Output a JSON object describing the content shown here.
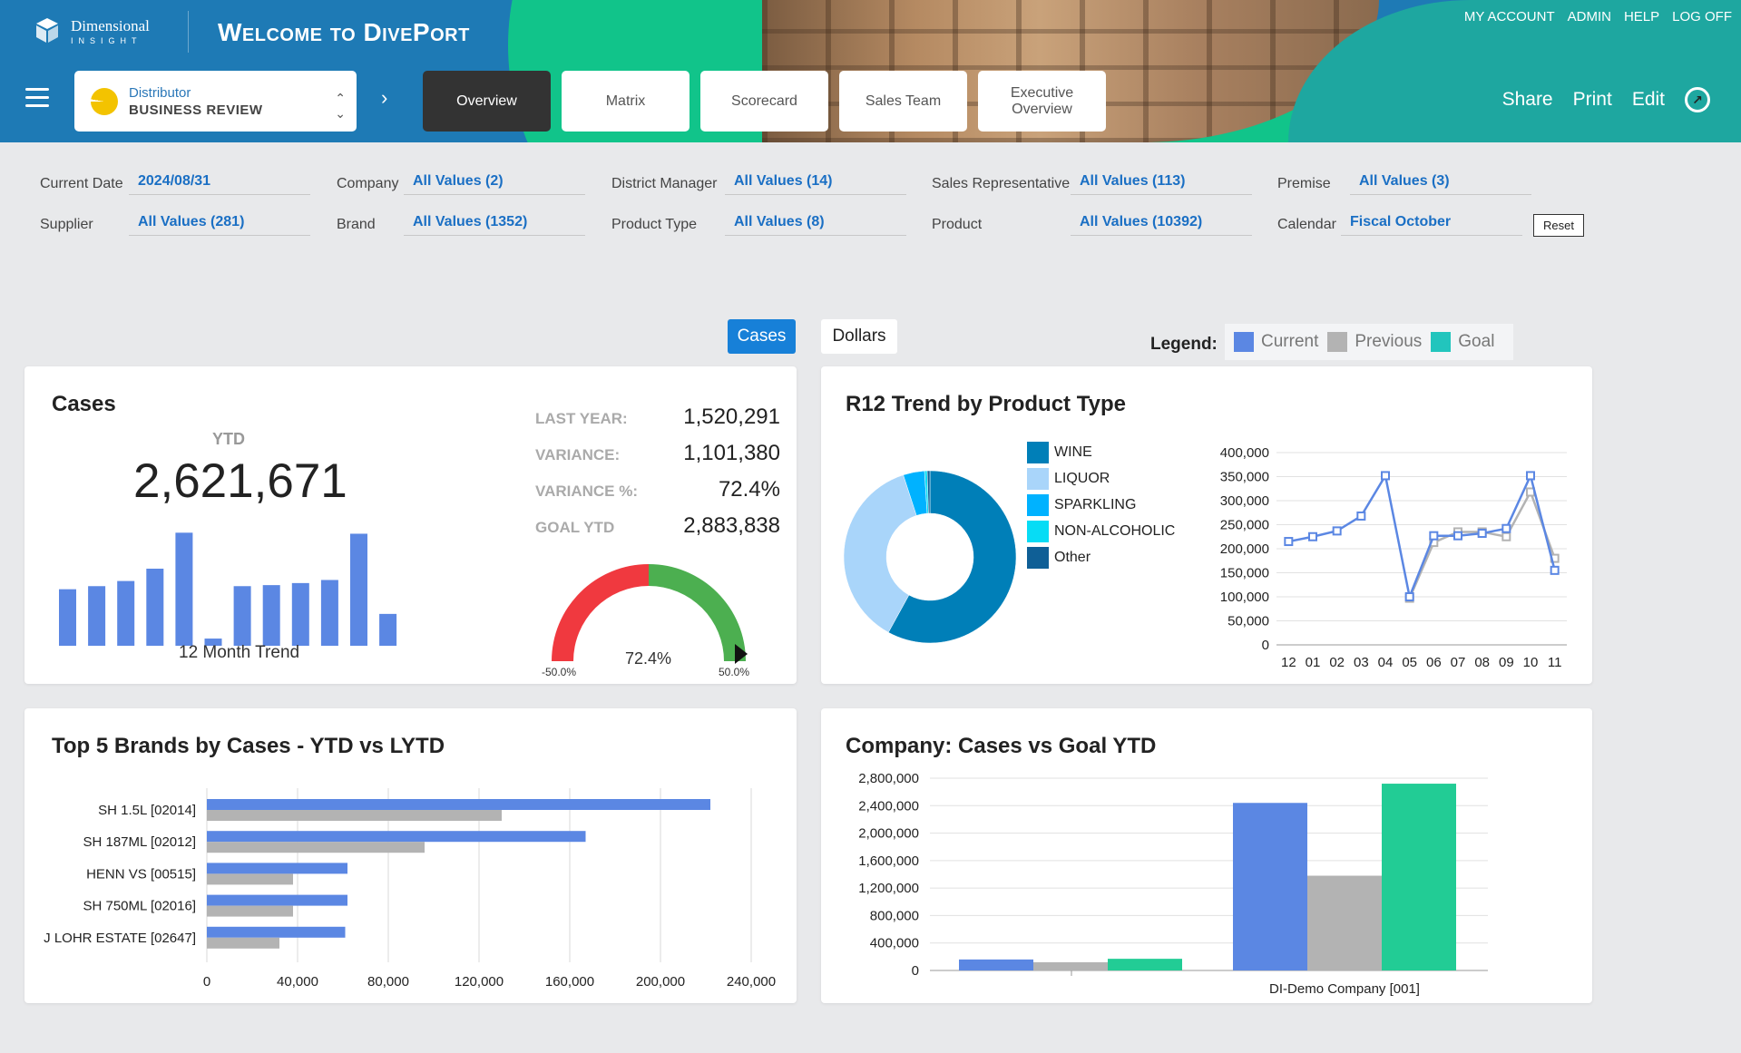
{
  "header": {
    "logo_line1": "Dimensional",
    "logo_line2": "INSIGHT",
    "title": "Welcome to DivePort",
    "top_links": [
      "MY ACCOUNT",
      "ADMIN",
      "HELP",
      "LOG OFF"
    ],
    "report_type": "Distributor",
    "report_name": "BUSINESS REVIEW",
    "tabs": [
      {
        "label": "Overview",
        "active": true
      },
      {
        "label": "Matrix",
        "active": false
      },
      {
        "label": "Scorecard",
        "active": false
      },
      {
        "label": "Sales Team",
        "active": false
      },
      {
        "label": "Executive Overview",
        "active": false
      }
    ],
    "actions": {
      "share": "Share",
      "print": "Print",
      "edit": "Edit"
    }
  },
  "filters": [
    {
      "label": "Current Date",
      "value": "2024/08/31"
    },
    {
      "label": "Company",
      "value": "All Values (2)"
    },
    {
      "label": "District Manager",
      "value": "All Values (14)"
    },
    {
      "label": "Sales Representative",
      "value": "All Values (113)"
    },
    {
      "label": "Premise",
      "value": "All Values (3)"
    },
    {
      "label": "Supplier",
      "value": "All Values (281)"
    },
    {
      "label": "Brand",
      "value": "All Values (1352)"
    },
    {
      "label": "Product Type",
      "value": "All Values (8)"
    },
    {
      "label": "Product",
      "value": "All Values (10392)"
    },
    {
      "label": "Calendar",
      "value": "Fiscal October"
    }
  ],
  "reset_label": "Reset",
  "toggles": {
    "cases": "Cases",
    "dollars": "Dollars",
    "selected": "Cases"
  },
  "legend": {
    "label": "Legend:",
    "items": [
      {
        "name": "Current",
        "color": "#5b87e3"
      },
      {
        "name": "Previous",
        "color": "#b3b3b3"
      },
      {
        "name": "Goal",
        "color": "#22c5bd"
      }
    ]
  },
  "cases_panel": {
    "title": "Cases",
    "ytd_label": "YTD",
    "ytd_value": "2,621,671",
    "trend_label": "12 Month Trend",
    "stats": [
      {
        "label": "LAST YEAR:",
        "value": "1,520,291"
      },
      {
        "label": "VARIANCE:",
        "value": "1,101,380"
      },
      {
        "label": "VARIANCE %:",
        "value": "72.4%"
      },
      {
        "label": "GOAL YTD",
        "value": "2,883,838"
      }
    ],
    "gauge": {
      "value": "72.4%",
      "min_label": "-50.0%",
      "max_label": "50.0%",
      "low_color": "#f0393f",
      "high_color": "#4caf50"
    }
  },
  "r12_panel": {
    "title": "R12 Trend by Product Type"
  },
  "brands_panel": {
    "title": "Top 5 Brands by Cases - YTD vs LYTD"
  },
  "company_panel": {
    "title": "Company: Cases vs Goal YTD"
  },
  "chart_data": [
    {
      "type": "bar",
      "title": "12 Month Trend",
      "values": [
        55000,
        58000,
        63000,
        75000,
        110000,
        7000,
        58000,
        59000,
        61000,
        64000,
        109000,
        31000
      ]
    },
    {
      "type": "pie",
      "title": "R12 Trend by Product Type",
      "categories": [
        "WINE",
        "LIQUOR",
        "SPARKLING",
        "NON-ALCOHOLIC",
        "Other"
      ],
      "values": [
        58,
        37,
        4,
        0.5,
        0.5
      ],
      "colors": [
        "#007fb8",
        "#a9d5fa",
        "#00b2ff",
        "#07dcf5",
        "#0f5f96"
      ]
    },
    {
      "type": "line",
      "title": "R12 Trend by Product Type",
      "categories": [
        "12",
        "01",
        "02",
        "03",
        "04",
        "05",
        "06",
        "07",
        "08",
        "09",
        "10",
        "11"
      ],
      "series": [
        {
          "name": "Current",
          "values": [
            215000,
            225000,
            237000,
            268000,
            352000,
            100000,
            227000,
            227000,
            232000,
            242000,
            352000,
            155000
          ]
        },
        {
          "name": "Previous",
          "values": [
            null,
            null,
            null,
            null,
            null,
            97000,
            213000,
            235000,
            235000,
            225000,
            318000,
            180000
          ]
        }
      ],
      "ylim": [
        0,
        400000
      ],
      "yticks": [
        "0",
        "50,000",
        "100,000",
        "150,000",
        "200,000",
        "250,000",
        "300,000",
        "350,000",
        "400,000"
      ]
    },
    {
      "type": "bar",
      "orientation": "horizontal",
      "title": "Top 5 Brands by Cases - YTD vs LYTD",
      "categories": [
        "SH 1.5L [02014]",
        "SH 187ML [02012]",
        "HENN VS [00515]",
        "SH 750ML [02016]",
        "J LOHR ESTATE [02647]"
      ],
      "series": [
        {
          "name": "Current",
          "values": [
            222000,
            167000,
            62000,
            62000,
            61000
          ]
        },
        {
          "name": "Previous",
          "values": [
            130000,
            96000,
            38000,
            38000,
            32000
          ]
        }
      ],
      "xlim": [
        0,
        240000
      ],
      "xticks": [
        "0",
        "40,000",
        "80,000",
        "120,000",
        "160,000",
        "200,000",
        "240,000"
      ]
    },
    {
      "type": "bar",
      "title": "Company: Cases vs Goal YTD",
      "categories": [
        "",
        "DI-Demo Company [001]"
      ],
      "series": [
        {
          "name": "Current",
          "values": [
            160000,
            2440000
          ]
        },
        {
          "name": "Previous",
          "values": [
            120000,
            1380000
          ]
        },
        {
          "name": "Goal",
          "values": [
            170000,
            2720000
          ]
        }
      ],
      "ylim": [
        0,
        2800000
      ],
      "yticks": [
        "0",
        "400,000",
        "800,000",
        "1,200,000",
        "1,600,000",
        "2,000,000",
        "2,400,000",
        "2,800,000"
      ]
    }
  ]
}
